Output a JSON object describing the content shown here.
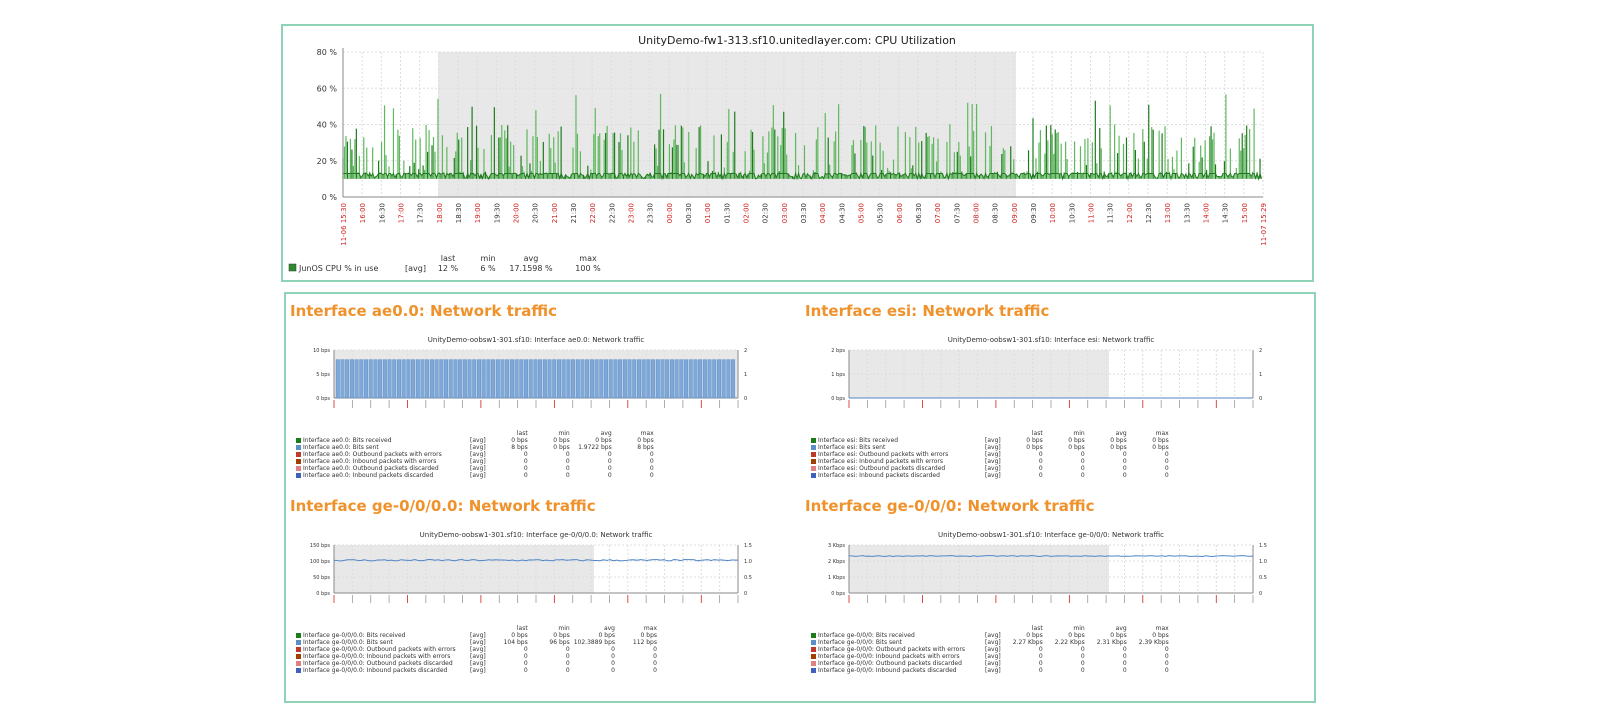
{
  "cpu_graph": {
    "title": "UnityDemo-fw1-313.sf10.unitedlayer.com: CPU Utilization",
    "y_ticks": [
      "80 %",
      "60 %",
      "40 %",
      "20 %",
      "0 %"
    ],
    "x_first": "11-06 15:30",
    "x_last": "11-07 15:29",
    "x_ticks": [
      "16:00",
      "16:30",
      "17:00",
      "17:30",
      "18:00",
      "18:30",
      "19:00",
      "19:30",
      "20:00",
      "20:30",
      "21:00",
      "21:30",
      "22:00",
      "22:30",
      "23:00",
      "23:30",
      "00:00",
      "00:30",
      "01:00",
      "01:30",
      "02:00",
      "02:30",
      "03:00",
      "03:30",
      "04:00",
      "04:30",
      "05:00",
      "05:30",
      "06:00",
      "06:30",
      "07:00",
      "07:30",
      "08:00",
      "08:30",
      "09:00",
      "09:30",
      "10:00",
      "10:30",
      "11:00",
      "11:30",
      "12:00",
      "12:30",
      "13:00",
      "13:30",
      "14:00",
      "14:30",
      "15:00"
    ],
    "legend_headers": [
      "last",
      "min",
      "avg",
      "max"
    ],
    "legend": [
      {
        "name": "JunOS CPU % in use",
        "func": "[avg]",
        "last": "12 %",
        "min": "6 %",
        "avg": "17.1598 %",
        "max": "100 %",
        "color": "#2e8b2e"
      }
    ]
  },
  "sections": [
    {
      "title": "Interface ae0.0: Network traffic",
      "graph_title": "UnityDemo-oobsw1-301.sf10: Interface ae0.0: Network traffic",
      "y_left": [
        "10 bps",
        "5 bps",
        "0 bps"
      ],
      "y_right": [
        "2",
        "1",
        "0"
      ],
      "legend_headers": [
        "last",
        "min",
        "avg",
        "max"
      ],
      "legend": [
        {
          "name": "Interface ae0.0: Bits received",
          "func": "[avg]",
          "last": "0 bps",
          "min": "0 bps",
          "avg": "0 bps",
          "max": "0 bps",
          "color": "#1a7c1a"
        },
        {
          "name": "Interface ae0.0: Bits sent",
          "func": "[avg]",
          "last": "8 bps",
          "min": "0 bps",
          "avg": "1.9722 bps",
          "max": "8 bps",
          "color": "#5a8fc8"
        },
        {
          "name": "Interface ae0.0: Outbound packets with errors",
          "func": "[avg]",
          "last": "0",
          "min": "0",
          "avg": "0",
          "max": "0",
          "color": "#c0392b"
        },
        {
          "name": "Interface ae0.0: Inbound packets with errors",
          "func": "[avg]",
          "last": "0",
          "min": "0",
          "avg": "0",
          "max": "0",
          "color": "#a04000"
        },
        {
          "name": "Interface ae0.0: Outbound packets discarded",
          "func": "[avg]",
          "last": "0",
          "min": "0",
          "avg": "0",
          "max": "0",
          "color": "#e08080"
        },
        {
          "name": "Interface ae0.0: Inbound packets discarded",
          "func": "[avg]",
          "last": "0",
          "min": "0",
          "avg": "0",
          "max": "0",
          "color": "#4060c0"
        }
      ]
    },
    {
      "title": "Interface esi: Network traffic",
      "graph_title": "UnityDemo-oobsw1-301.sf10: Interface esi: Network traffic",
      "y_left": [
        "2 bps",
        "1 bps",
        "0 bps"
      ],
      "y_right": [
        "2",
        "1",
        "0"
      ],
      "legend_headers": [
        "last",
        "min",
        "avg",
        "max"
      ],
      "legend": [
        {
          "name": "Interface esi: Bits received",
          "func": "[avg]",
          "last": "0 bps",
          "min": "0 bps",
          "avg": "0 bps",
          "max": "0 bps",
          "color": "#1a7c1a"
        },
        {
          "name": "Interface esi: Bits sent",
          "func": "[avg]",
          "last": "0 bps",
          "min": "0 bps",
          "avg": "0 bps",
          "max": "0 bps",
          "color": "#5a8fc8"
        },
        {
          "name": "Interface esi: Outbound packets with errors",
          "func": "[avg]",
          "last": "0",
          "min": "0",
          "avg": "0",
          "max": "0",
          "color": "#c0392b"
        },
        {
          "name": "Interface esi: Inbound packets with errors",
          "func": "[avg]",
          "last": "0",
          "min": "0",
          "avg": "0",
          "max": "0",
          "color": "#a04000"
        },
        {
          "name": "Interface esi: Outbound packets discarded",
          "func": "[avg]",
          "last": "0",
          "min": "0",
          "avg": "0",
          "max": "0",
          "color": "#e08080"
        },
        {
          "name": "Interface esi: Inbound packets discarded",
          "func": "[avg]",
          "last": "0",
          "min": "0",
          "avg": "0",
          "max": "0",
          "color": "#4060c0"
        }
      ]
    },
    {
      "title": "Interface ge-0/0/0.0: Network traffic",
      "graph_title": "UnityDemo-oobsw1-301.sf10: Interface ge-0/0/0.0: Network traffic",
      "y_left": [
        "150 bps",
        "100 bps",
        "50 bps",
        "0 bps"
      ],
      "y_right": [
        "1.5",
        "1.0",
        "0.5",
        "0"
      ],
      "legend_headers": [
        "last",
        "min",
        "avg",
        "max"
      ],
      "legend": [
        {
          "name": "Interface ge-0/0/0.0: Bits received",
          "func": "[avg]",
          "last": "0 bps",
          "min": "0 bps",
          "avg": "0 bps",
          "max": "0 bps",
          "color": "#1a7c1a"
        },
        {
          "name": "Interface ge-0/0/0.0: Bits sent",
          "func": "[avg]",
          "last": "104 bps",
          "min": "96 bps",
          "avg": "102.3889 bps",
          "max": "112 bps",
          "color": "#5a8fc8"
        },
        {
          "name": "Interface ge-0/0/0.0: Outbound packets with errors",
          "func": "[avg]",
          "last": "0",
          "min": "0",
          "avg": "0",
          "max": "0",
          "color": "#c0392b"
        },
        {
          "name": "Interface ge-0/0/0.0: Inbound packets with errors",
          "func": "[avg]",
          "last": "0",
          "min": "0",
          "avg": "0",
          "max": "0",
          "color": "#a04000"
        },
        {
          "name": "Interface ge-0/0/0.0: Outbound packets discarded",
          "func": "[avg]",
          "last": "0",
          "min": "0",
          "avg": "0",
          "max": "0",
          "color": "#e08080"
        },
        {
          "name": "Interface ge-0/0/0.0: Inbound packets discarded",
          "func": "[avg]",
          "last": "0",
          "min": "0",
          "avg": "0",
          "max": "0",
          "color": "#4060c0"
        }
      ]
    },
    {
      "title": "Interface ge-0/0/0: Network traffic",
      "graph_title": "UnityDemo-oobsw1-301.sf10: Interface ge-0/0/0: Network traffic",
      "y_left": [
        "3 Kbps",
        "2 Kbps",
        "1 Kbps",
        "0 bps"
      ],
      "y_right": [
        "1.5",
        "1.0",
        "0.5",
        "0"
      ],
      "legend_headers": [
        "last",
        "min",
        "avg",
        "max"
      ],
      "legend": [
        {
          "name": "Interface ge-0/0/0: Bits received",
          "func": "[avg]",
          "last": "0 bps",
          "min": "0 bps",
          "avg": "0 bps",
          "max": "0 bps",
          "color": "#1a7c1a"
        },
        {
          "name": "Interface ge-0/0/0: Bits sent",
          "func": "[avg]",
          "last": "2.27 Kbps",
          "min": "2.22 Kbps",
          "avg": "2.31 Kbps",
          "max": "2.39 Kbps",
          "color": "#5a8fc8"
        },
        {
          "name": "Interface ge-0/0/0: Outbound packets with errors",
          "func": "[avg]",
          "last": "0",
          "min": "0",
          "avg": "0",
          "max": "0",
          "color": "#c0392b"
        },
        {
          "name": "Interface ge-0/0/0: Inbound packets with errors",
          "func": "[avg]",
          "last": "0",
          "min": "0",
          "avg": "0",
          "max": "0",
          "color": "#a04000"
        },
        {
          "name": "Interface ge-0/0/0: Outbound packets discarded",
          "func": "[avg]",
          "last": "0",
          "min": "0",
          "avg": "0",
          "max": "0",
          "color": "#e08080"
        },
        {
          "name": "Interface ge-0/0/0: Inbound packets discarded",
          "func": "[avg]",
          "last": "0",
          "min": "0",
          "avg": "0",
          "max": "0",
          "color": "#4060c0"
        }
      ]
    }
  ],
  "chart_data": [
    {
      "type": "bar",
      "title": "UnityDemo-fw1-313.sf10.unitedlayer.com: CPU Utilization",
      "ylim": [
        0,
        80
      ],
      "x_range": [
        "11-06 15:30",
        "11-07 15:29"
      ],
      "series": [
        {
          "name": "JunOS CPU % in use",
          "avg": 17.1598,
          "min": 6,
          "max": 100,
          "last": 12
        }
      ]
    },
    {
      "type": "area",
      "title": "UnityDemo-oobsw1-301.sf10: Interface ae0.0: Network traffic",
      "ylim": [
        0,
        10
      ],
      "series": [
        {
          "name": "Interface ae0.0: Bits sent",
          "peak": 8,
          "avg": 1.9722,
          "max": 8,
          "last": 8
        }
      ]
    },
    {
      "type": "line",
      "title": "UnityDemo-oobsw1-301.sf10: Interface esi: Network traffic",
      "ylim": [
        0,
        2
      ],
      "series": [
        {
          "name": "Interface esi: Bits sent",
          "value": 0
        }
      ]
    },
    {
      "type": "line",
      "title": "UnityDemo-oobsw1-301.sf10: Interface ge-0/0/0.0: Network traffic",
      "ylim": [
        0,
        150
      ],
      "series": [
        {
          "name": "Interface ge-0/0/0.0: Bits sent",
          "value": 102.3889,
          "min": 96,
          "max": 112
        }
      ]
    },
    {
      "type": "line",
      "title": "UnityDemo-oobsw1-301.sf10: Interface ge-0/0/0: Network traffic",
      "ylim": [
        0,
        3000
      ],
      "series": [
        {
          "name": "Interface ge-0/0/0: Bits sent",
          "value": 2310,
          "min": 2220,
          "max": 2390
        }
      ]
    }
  ]
}
